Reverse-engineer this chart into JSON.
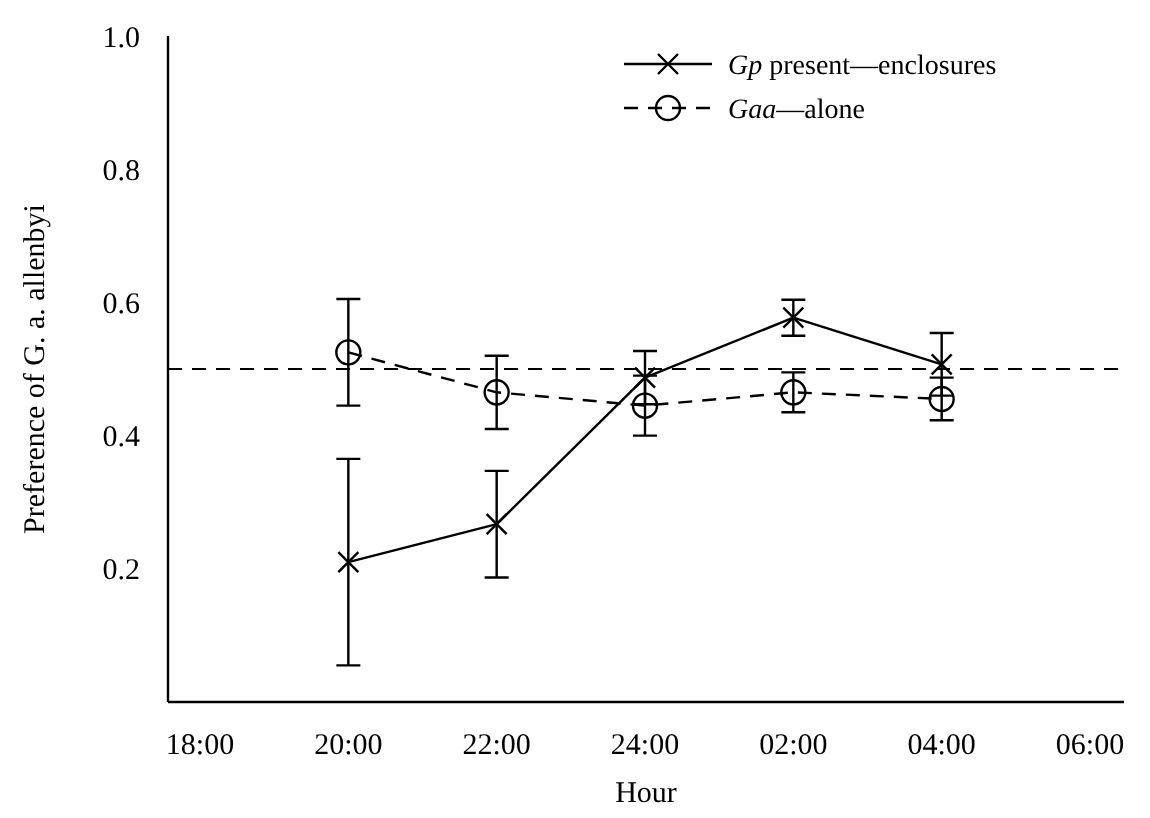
{
  "chart_data": {
    "type": "line",
    "xlabel": "Hour",
    "ylabel": "Preference of G. a. allenbyi",
    "categories": [
      "18:00",
      "20:00",
      "22:00",
      "24:00",
      "02:00",
      "04:00",
      "06:00"
    ],
    "ylim": [
      0,
      1
    ],
    "yticks": [
      0.2,
      0.4,
      0.6,
      0.8,
      {
        "value": 1,
        "label": "1.0"
      }
    ],
    "series": [
      {
        "name": "Gp present—enclosures",
        "color": "#000000",
        "marker": "cross",
        "line_style": "solid",
        "values": [
          null,
          0.21,
          0.267,
          0.487,
          0.577,
          0.507,
          null
        ],
        "errors": [
          null,
          0.155,
          0.08,
          0.04,
          0.027,
          0.047,
          null
        ]
      },
      {
        "name": "Gaa—alone",
        "color": "#000000",
        "marker": "circle",
        "line_style": "dashed",
        "values": [
          null,
          0.525,
          0.465,
          0.445,
          0.465,
          0.455,
          null
        ],
        "errors": [
          null,
          0.08,
          0.055,
          0.045,
          0.03,
          0.032,
          null
        ]
      }
    ],
    "ref_lines": [
      {
        "axis": "y",
        "value": 0.5,
        "label": null,
        "color": "#000000",
        "line_style": "dashed"
      }
    ],
    "legend": "top right",
    "grid": false
  }
}
